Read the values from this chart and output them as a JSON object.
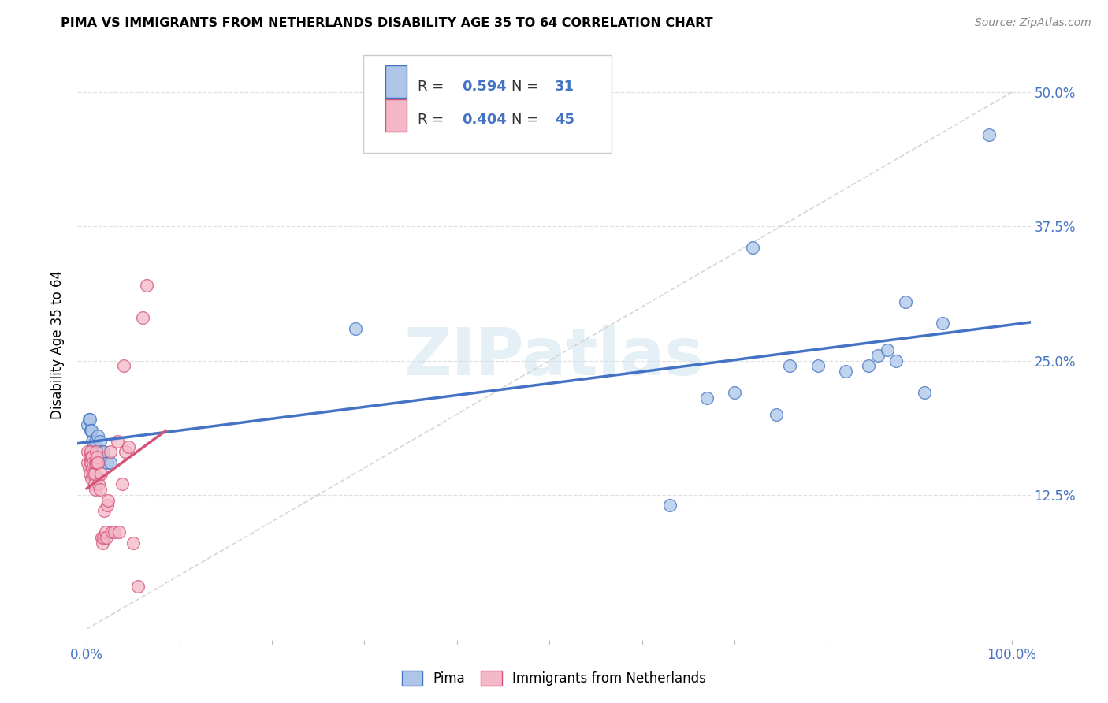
{
  "title": "PIMA VS IMMIGRANTS FROM NETHERLANDS DISABILITY AGE 35 TO 64 CORRELATION CHART",
  "source": "Source: ZipAtlas.com",
  "ylabel": "Disability Age 35 to 64",
  "legend_labels": [
    "Pima",
    "Immigrants from Netherlands"
  ],
  "r_pima": 0.594,
  "n_pima": 31,
  "r_netherlands": 0.404,
  "n_netherlands": 45,
  "color_pima": "#adc6e8",
  "color_netherlands": "#f4b8c8",
  "line_color_pima": "#4472c4",
  "line_color_netherlands": "#d4547a",
  "watermark": "ZIPatlas",
  "pima_x": [
    0.001,
    0.002,
    0.003,
    0.004,
    0.005,
    0.006,
    0.007,
    0.009,
    0.012,
    0.014,
    0.015,
    0.018,
    0.022,
    0.025,
    0.29,
    0.63,
    0.67,
    0.7,
    0.72,
    0.745,
    0.76,
    0.79,
    0.82,
    0.845,
    0.855,
    0.865,
    0.875,
    0.885,
    0.905,
    0.925,
    0.975
  ],
  "pima_y": [
    0.19,
    0.195,
    0.195,
    0.185,
    0.185,
    0.175,
    0.17,
    0.175,
    0.18,
    0.175,
    0.165,
    0.165,
    0.155,
    0.155,
    0.28,
    0.115,
    0.215,
    0.22,
    0.355,
    0.2,
    0.245,
    0.245,
    0.24,
    0.245,
    0.255,
    0.26,
    0.25,
    0.305,
    0.22,
    0.285,
    0.46
  ],
  "netherlands_x": [
    0.001,
    0.001,
    0.002,
    0.003,
    0.003,
    0.004,
    0.004,
    0.005,
    0.005,
    0.006,
    0.006,
    0.007,
    0.007,
    0.008,
    0.008,
    0.009,
    0.009,
    0.01,
    0.01,
    0.011,
    0.012,
    0.013,
    0.014,
    0.015,
    0.016,
    0.017,
    0.018,
    0.019,
    0.02,
    0.021,
    0.022,
    0.023,
    0.025,
    0.027,
    0.03,
    0.033,
    0.035,
    0.038,
    0.04,
    0.042,
    0.045,
    0.05,
    0.055,
    0.06,
    0.065
  ],
  "netherlands_y": [
    0.155,
    0.165,
    0.15,
    0.145,
    0.16,
    0.155,
    0.165,
    0.14,
    0.16,
    0.16,
    0.15,
    0.155,
    0.145,
    0.135,
    0.145,
    0.13,
    0.155,
    0.155,
    0.165,
    0.16,
    0.155,
    0.135,
    0.13,
    0.145,
    0.085,
    0.08,
    0.085,
    0.11,
    0.09,
    0.085,
    0.115,
    0.12,
    0.165,
    0.09,
    0.09,
    0.175,
    0.09,
    0.135,
    0.245,
    0.165,
    0.17,
    0.08,
    0.04,
    0.29,
    0.32
  ],
  "xlim": [
    -0.01,
    1.02
  ],
  "ylim": [
    -0.01,
    0.54
  ],
  "xtick_positions": [
    0.0,
    0.1,
    0.2,
    0.3,
    0.4,
    0.5,
    0.6,
    0.7,
    0.8,
    0.9,
    1.0
  ],
  "xtick_labels_show": {
    "0.0": "0.0%",
    "1.0": "100.0%"
  },
  "ytick_positions": [
    0.0,
    0.125,
    0.25,
    0.375,
    0.5
  ],
  "ytick_labels": [
    "",
    "12.5%",
    "25.0%",
    "37.5%",
    "50.0%"
  ],
  "grid_color": "#e0e0e0",
  "diag_line_color": "#cccccc"
}
